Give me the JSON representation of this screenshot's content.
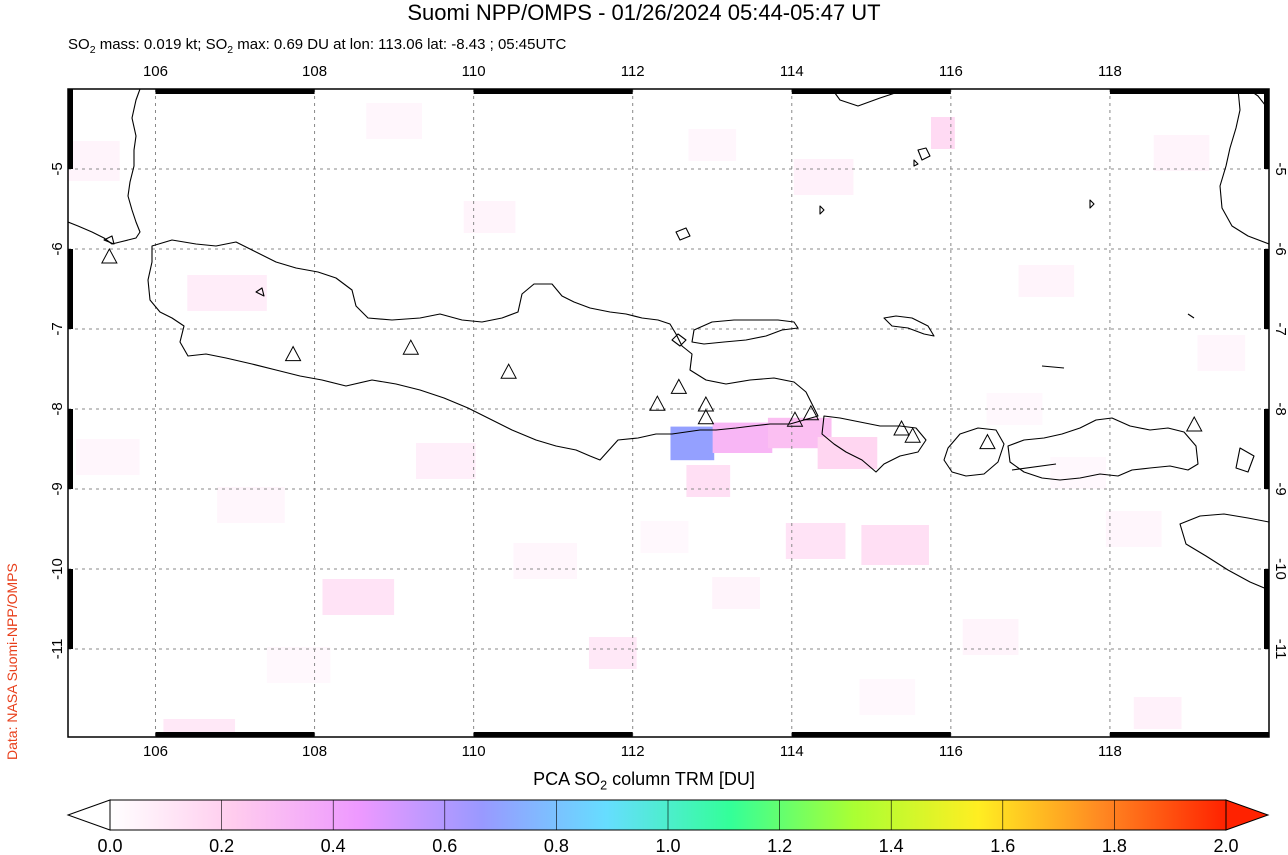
{
  "title": "Suomi NPP/OMPS - 01/26/2024 05:44-05:47 UT",
  "subtitle": {
    "part1": "SO",
    "sub1": "2",
    "part2": " mass: 0.019 kt; SO",
    "sub2": "2",
    "part3": " max: 0.69 DU at lon: 113.06 lat: -8.43 ; 05:45UTC"
  },
  "side_credit": "Data: NASA Suomi-NPP/OMPS",
  "colorbar": {
    "title_part1": "PCA SO",
    "title_sub": "2",
    "title_part2": " column TRM [DU]",
    "ticks": [
      "0.0",
      "0.2",
      "0.4",
      "0.6",
      "0.8",
      "1.0",
      "1.2",
      "1.4",
      "1.6",
      "1.8",
      "2.0"
    ],
    "min": 0.0,
    "max": 2.0,
    "stops": [
      "#ffffff",
      "#ffccee",
      "#ee99ff",
      "#9999ff",
      "#66ddff",
      "#33ff99",
      "#aaff33",
      "#ffee22",
      "#ff8822",
      "#ff2200"
    ]
  },
  "map": {
    "lon_range": [
      104.9,
      120.0
    ],
    "lat_range": [
      -12.1,
      -4.0
    ],
    "lon_ticks": [
      "106",
      "108",
      "110",
      "112",
      "114",
      "116",
      "118"
    ],
    "lon_values": [
      106,
      108,
      110,
      112,
      114,
      116,
      118
    ],
    "lat_ticks": [
      "-5",
      "-6",
      "-7",
      "-8",
      "-9",
      "-10",
      "-11"
    ],
    "lat_values": [
      -5,
      -6,
      -7,
      -8,
      -9,
      -10,
      -11
    ],
    "volcanoes": [
      {
        "lon": 105.42,
        "lat": -6.1
      },
      {
        "lon": 107.73,
        "lat": -7.32
      },
      {
        "lon": 109.21,
        "lat": -7.24
      },
      {
        "lon": 110.44,
        "lat": -7.54
      },
      {
        "lon": 112.31,
        "lat": -7.94
      },
      {
        "lon": 112.58,
        "lat": -7.73
      },
      {
        "lon": 112.92,
        "lat": -7.95
      },
      {
        "lon": 112.92,
        "lat": -8.11
      },
      {
        "lon": 114.04,
        "lat": -8.14
      },
      {
        "lon": 114.24,
        "lat": -8.06
      },
      {
        "lon": 115.38,
        "lat": -8.25
      },
      {
        "lon": 115.52,
        "lat": -8.34
      },
      {
        "lon": 116.46,
        "lat": -8.42
      },
      {
        "lon": 119.06,
        "lat": -8.2
      }
    ],
    "so2_pixels": [
      {
        "lon": 112.75,
        "lat": -8.43,
        "w": 0.55,
        "h": 0.42,
        "value": 0.69
      },
      {
        "lon": 113.38,
        "lat": -8.36,
        "w": 0.75,
        "h": 0.38,
        "value": 0.32
      },
      {
        "lon": 114.1,
        "lat": -8.3,
        "w": 0.8,
        "h": 0.38,
        "value": 0.28
      },
      {
        "lon": 114.7,
        "lat": -8.55,
        "w": 0.75,
        "h": 0.4,
        "value": 0.18
      },
      {
        "lon": 112.95,
        "lat": -8.9,
        "w": 0.55,
        "h": 0.4,
        "value": 0.14
      },
      {
        "lon": 115.3,
        "lat": -9.7,
        "w": 0.85,
        "h": 0.5,
        "value": 0.14
      },
      {
        "lon": 114.3,
        "lat": -9.65,
        "w": 0.75,
        "h": 0.45,
        "value": 0.12
      },
      {
        "lon": 115.9,
        "lat": -4.55,
        "w": 0.3,
        "h": 0.4,
        "value": 0.16
      },
      {
        "lon": 108.55,
        "lat": -10.35,
        "w": 0.9,
        "h": 0.45,
        "value": 0.12
      },
      {
        "lon": 106.9,
        "lat": -6.55,
        "w": 1.0,
        "h": 0.45,
        "value": 0.08
      },
      {
        "lon": 106.55,
        "lat": -12.05,
        "w": 0.9,
        "h": 0.35,
        "value": 0.1
      },
      {
        "lon": 111.75,
        "lat": -11.05,
        "w": 0.6,
        "h": 0.4,
        "value": 0.1
      },
      {
        "lon": 109.65,
        "lat": -8.65,
        "w": 0.75,
        "h": 0.45,
        "value": 0.07
      },
      {
        "lon": 114.4,
        "lat": -5.1,
        "w": 0.75,
        "h": 0.45,
        "value": 0.06
      },
      {
        "lon": 105.2,
        "lat": -4.9,
        "w": 0.7,
        "h": 0.5,
        "value": 0.05
      },
      {
        "lon": 117.2,
        "lat": -6.4,
        "w": 0.7,
        "h": 0.4,
        "value": 0.05
      },
      {
        "lon": 110.2,
        "lat": -5.6,
        "w": 0.65,
        "h": 0.4,
        "value": 0.05
      },
      {
        "lon": 118.9,
        "lat": -4.8,
        "w": 0.7,
        "h": 0.45,
        "value": 0.05
      },
      {
        "lon": 116.5,
        "lat": -10.85,
        "w": 0.7,
        "h": 0.45,
        "value": 0.05
      },
      {
        "lon": 118.3,
        "lat": -9.5,
        "w": 0.7,
        "h": 0.45,
        "value": 0.04
      },
      {
        "lon": 107.2,
        "lat": -9.2,
        "w": 0.85,
        "h": 0.45,
        "value": 0.04
      },
      {
        "lon": 110.9,
        "lat": -9.9,
        "w": 0.8,
        "h": 0.45,
        "value": 0.04
      },
      {
        "lon": 105.4,
        "lat": -8.6,
        "w": 0.8,
        "h": 0.45,
        "value": 0.04
      },
      {
        "lon": 119.4,
        "lat": -7.3,
        "w": 0.6,
        "h": 0.45,
        "value": 0.04
      },
      {
        "lon": 113.3,
        "lat": -10.3,
        "w": 0.6,
        "h": 0.4,
        "value": 0.05
      },
      {
        "lon": 117.6,
        "lat": -8.8,
        "w": 0.7,
        "h": 0.4,
        "value": 0.03
      },
      {
        "lon": 109.0,
        "lat": -4.4,
        "w": 0.7,
        "h": 0.45,
        "value": 0.04
      },
      {
        "lon": 113.0,
        "lat": -4.7,
        "w": 0.6,
        "h": 0.4,
        "value": 0.04
      },
      {
        "lon": 107.8,
        "lat": -11.2,
        "w": 0.8,
        "h": 0.45,
        "value": 0.03
      },
      {
        "lon": 115.2,
        "lat": -11.6,
        "w": 0.7,
        "h": 0.45,
        "value": 0.03
      },
      {
        "lon": 118.6,
        "lat": -11.8,
        "w": 0.6,
        "h": 0.4,
        "value": 0.06
      },
      {
        "lon": 112.4,
        "lat": -9.6,
        "w": 0.6,
        "h": 0.4,
        "value": 0.03
      },
      {
        "lon": 116.8,
        "lat": -8.0,
        "w": 0.7,
        "h": 0.4,
        "value": 0.03
      }
    ]
  }
}
